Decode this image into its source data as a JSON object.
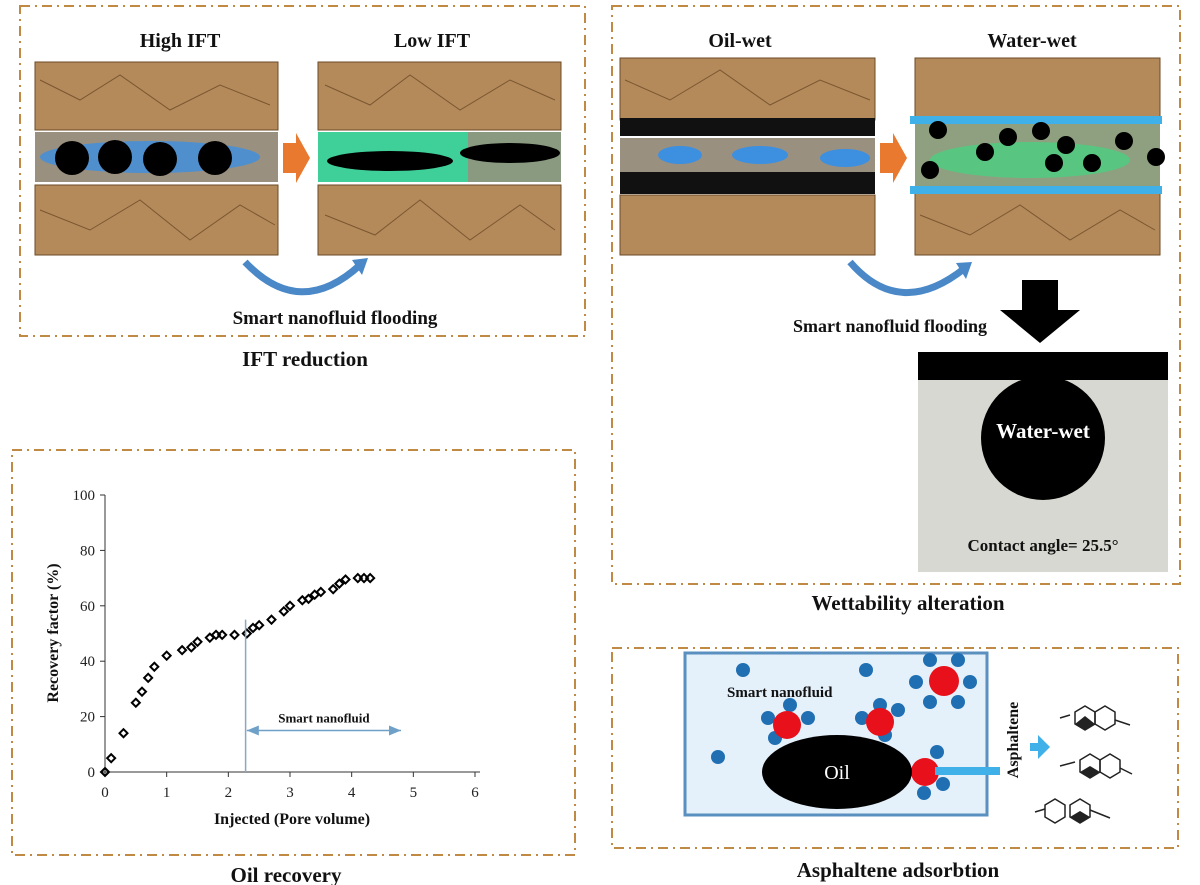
{
  "ift_panel": {
    "left_label": "High IFT",
    "right_label": "Low IFT",
    "process_label": "Smart nanofluid flooding",
    "caption": "IFT reduction"
  },
  "wettability_panel": {
    "left_label": "Oil-wet",
    "right_label": "Water-wet",
    "process_label": "Smart nanofluid flooding",
    "droplet_label": "Water-wet",
    "contact_angle": "Contact angle= 25.5°",
    "caption": "Wettability alteration"
  },
  "asphaltene_panel": {
    "fluid_label": "Smart nanofluid",
    "oil_label": "Oil",
    "asphaltene_label": "Asphaltene",
    "caption": "Asphaltene adsorbtion"
  },
  "oil_recovery_panel": {
    "caption": "Oil recovery"
  },
  "colors": {
    "rock": "#b48a5a",
    "arrow_orange": "#e8792f",
    "nanoparticle_blue": "#1f6fb2",
    "asphaltene_red": "#e8101a",
    "frame": "#c08a45"
  },
  "chart_data": {
    "type": "scatter",
    "title": "",
    "xlabel": "Injected (Pore volume)",
    "ylabel": "Recovery factor (%)",
    "xlim": [
      0,
      6
    ],
    "ylim": [
      0,
      100
    ],
    "xticks": [
      "0",
      "1",
      "2",
      "3",
      "4",
      "5",
      "6"
    ],
    "yticks": [
      "0",
      "20",
      "40",
      "60",
      "80",
      "100"
    ],
    "grid": false,
    "marker": "diamond",
    "x": [
      0,
      0.1,
      0.3,
      0.5,
      0.6,
      0.7,
      0.8,
      1.0,
      1.25,
      1.4,
      1.5,
      1.7,
      1.8,
      1.9,
      2.1,
      2.3,
      2.4,
      2.5,
      2.7,
      2.9,
      3.0,
      3.2,
      3.3,
      3.4,
      3.5,
      3.7,
      3.8,
      3.9,
      4.1,
      4.2,
      4.3
    ],
    "y": [
      0,
      5,
      14,
      25,
      29,
      34,
      38,
      42,
      44,
      45,
      47,
      48.5,
      49.5,
      49.5,
      49.5,
      50,
      52,
      53,
      55,
      58,
      60,
      62,
      62.5,
      64,
      65,
      66,
      68,
      69.5,
      70,
      70,
      70
    ],
    "annotation": {
      "text": "Smart nanofluid",
      "start_x": 2.28,
      "arrow_from": 2.3,
      "arrow_to": 4.8,
      "arrow_y": 15
    }
  }
}
